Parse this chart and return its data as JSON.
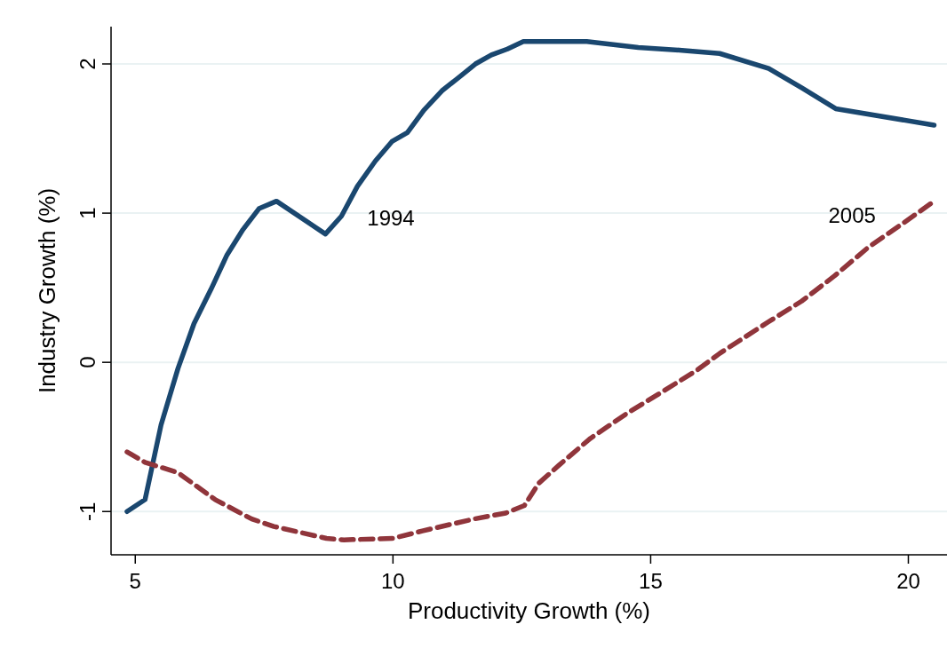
{
  "chart_data": {
    "type": "line",
    "xlabel": "Productivity Growth (%)",
    "ylabel": "Industry Growth (%)",
    "xlim": [
      4.53,
      20.75
    ],
    "xticks": [
      5,
      10,
      15,
      20
    ],
    "ylim": [
      -1.29,
      2.25
    ],
    "yticks": [
      -1,
      0,
      1,
      2
    ],
    "grid": "y",
    "series": [
      {
        "name": "1994",
        "color": "#1a476f",
        "line_style": "solid",
        "x": [
          4.84,
          5.19,
          5.5,
          5.83,
          6.14,
          6.47,
          6.78,
          7.09,
          7.4,
          7.74,
          8.69,
          9.0,
          9.31,
          9.66,
          9.98,
          10.28,
          10.6,
          10.95,
          11.28,
          11.6,
          11.91,
          12.22,
          12.53,
          12.81,
          13.76,
          14.76,
          15.66,
          16.34,
          17.29,
          17.93,
          18.59,
          20.5
        ],
        "values": [
          -1.0,
          -0.92,
          -0.42,
          -0.04,
          0.26,
          0.49,
          0.72,
          0.89,
          1.03,
          1.08,
          0.86,
          0.98,
          1.18,
          1.35,
          1.48,
          1.54,
          1.69,
          1.82,
          1.91,
          2.0,
          2.06,
          2.1,
          2.15,
          2.15,
          2.15,
          2.11,
          2.09,
          2.07,
          1.97,
          1.84,
          1.7,
          1.59
        ]
      },
      {
        "name": "2005",
        "color": "#90353b",
        "line_style": "dashed",
        "x": [
          4.84,
          5.19,
          5.83,
          6.55,
          7.26,
          7.69,
          8.71,
          9.05,
          10.0,
          10.57,
          11.57,
          12.19,
          12.55,
          12.83,
          13.22,
          13.83,
          14.55,
          15.26,
          15.91,
          16.34,
          17.28,
          17.93,
          18.57,
          19.22,
          19.93,
          20.5
        ],
        "values": [
          -0.6,
          -0.67,
          -0.74,
          -0.92,
          -1.05,
          -1.1,
          -1.18,
          -1.19,
          -1.18,
          -1.13,
          -1.05,
          -1.01,
          -0.96,
          -0.81,
          -0.69,
          -0.51,
          -0.34,
          -0.19,
          -0.05,
          0.06,
          0.27,
          0.41,
          0.58,
          0.77,
          0.94,
          1.08
        ]
      }
    ]
  }
}
